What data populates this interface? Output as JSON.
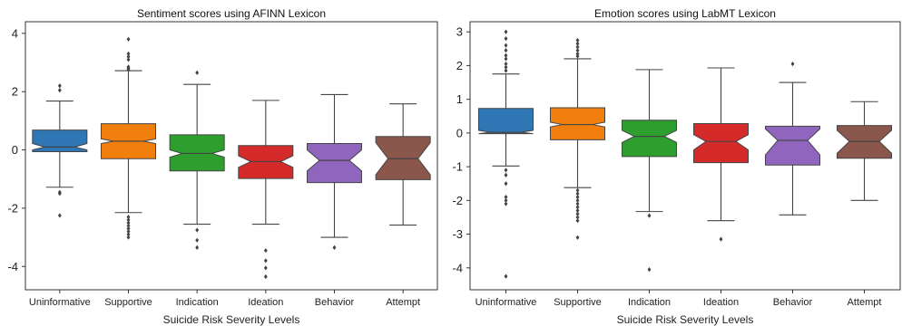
{
  "colors": {
    "Uninformative": "#2f77b4",
    "Supportive": "#f07f0e",
    "Indication": "#2e9e2e",
    "Ideation": "#d42a2a",
    "Behavior": "#9065bd",
    "Attempt": "#8b564b"
  },
  "chart_data": [
    {
      "type": "box",
      "title": "Sentiment scores using AFINN Lexicon",
      "xlabel": "Suicide Risk Severity Levels",
      "ylabel": "",
      "ylim": [
        -4.8,
        4.4
      ],
      "yticks": [
        -4,
        -2,
        0,
        2,
        4
      ],
      "ytick_labels": [
        "-4",
        "-2",
        "0",
        "2",
        "4"
      ],
      "categories": [
        "Uninformative",
        "Supportive",
        "Indication",
        "Ideation",
        "Behavior",
        "Attempt"
      ],
      "boxes": [
        {
          "category": "Uninformative",
          "q1": -0.06,
          "median": 0.1,
          "q3": 0.68,
          "whisker_low": -1.28,
          "whisker_high": 1.68,
          "notch_low": 0.0,
          "notch_high": 0.22,
          "fliers": [
            2.2,
            2.05,
            -1.45,
            -1.5,
            -2.25
          ]
        },
        {
          "category": "Supportive",
          "q1": -0.3,
          "median": 0.3,
          "q3": 0.9,
          "whisker_low": -2.15,
          "whisker_high": 2.72,
          "notch_low": 0.22,
          "notch_high": 0.38,
          "fliers": [
            3.8,
            3.3,
            3.2,
            3.1,
            2.85,
            2.8,
            2.75,
            -2.3,
            -2.4,
            -2.5,
            -2.6,
            -2.7,
            -2.8,
            -2.9,
            -3.0
          ]
        },
        {
          "category": "Indication",
          "q1": -0.72,
          "median": -0.12,
          "q3": 0.52,
          "whisker_low": -2.55,
          "whisker_high": 2.25,
          "notch_low": -0.25,
          "notch_high": 0.0,
          "fliers": [
            2.65,
            -2.75,
            -3.1,
            -3.35
          ]
        },
        {
          "category": "Ideation",
          "q1": -0.98,
          "median": -0.4,
          "q3": 0.15,
          "whisker_low": -2.55,
          "whisker_high": 1.7,
          "notch_low": -0.6,
          "notch_high": -0.2,
          "fliers": [
            -3.45,
            -3.8,
            -4.05,
            -4.35
          ]
        },
        {
          "category": "Behavior",
          "q1": -1.12,
          "median": -0.36,
          "q3": 0.22,
          "whisker_low": -3.0,
          "whisker_high": 1.9,
          "notch_low": -0.72,
          "notch_high": 0.0,
          "fliers": [
            -3.35
          ]
        },
        {
          "category": "Attempt",
          "q1": -1.02,
          "median": -0.3,
          "q3": 0.46,
          "whisker_low": -2.58,
          "whisker_high": 1.58,
          "notch_low": -0.85,
          "notch_high": 0.25,
          "fliers": []
        }
      ]
    },
    {
      "type": "box",
      "title": "Emotion scores using LabMT Lexicon",
      "xlabel": "Suicide Risk Severity Levels",
      "ylabel": "",
      "ylim": [
        -4.65,
        3.3
      ],
      "yticks": [
        -4,
        -3,
        -2,
        -1,
        0,
        1,
        2,
        3
      ],
      "ytick_labels": [
        "-4",
        "-3",
        "-2",
        "-1",
        "0",
        "1",
        "2",
        "3"
      ],
      "categories": [
        "Uninformative",
        "Supportive",
        "Indication",
        "Ideation",
        "Behavior",
        "Attempt"
      ],
      "boxes": [
        {
          "category": "Uninformative",
          "q1": -0.02,
          "median": 0.02,
          "q3": 0.73,
          "whisker_low": -0.98,
          "whisker_high": 1.75,
          "notch_low": -0.02,
          "notch_high": 0.08,
          "fliers": [
            3.0,
            2.8,
            2.6,
            2.45,
            2.3,
            2.2,
            2.05,
            1.95,
            1.85,
            -1.1,
            -1.25,
            -1.5,
            -1.9,
            -2.0,
            -2.1,
            -4.25
          ]
        },
        {
          "category": "Supportive",
          "q1": -0.2,
          "median": 0.25,
          "q3": 0.75,
          "whisker_low": -1.62,
          "whisker_high": 2.2,
          "notch_low": 0.18,
          "notch_high": 0.32,
          "fliers": [
            2.75,
            2.65,
            2.55,
            2.45,
            2.35,
            2.28,
            -1.7,
            -1.8,
            -1.9,
            -2.0,
            -2.1,
            -2.2,
            -2.3,
            -2.4,
            -2.5,
            -2.6,
            -3.1
          ]
        },
        {
          "category": "Indication",
          "q1": -0.7,
          "median": -0.1,
          "q3": 0.38,
          "whisker_low": -2.33,
          "whisker_high": 1.88,
          "notch_low": -0.28,
          "notch_high": 0.08,
          "fliers": [
            -2.45,
            -4.05
          ]
        },
        {
          "category": "Ideation",
          "q1": -0.88,
          "median": -0.25,
          "q3": 0.28,
          "whisker_low": -2.6,
          "whisker_high": 1.93,
          "notch_low": -0.5,
          "notch_high": -0.05,
          "fliers": [
            -3.15
          ]
        },
        {
          "category": "Behavior",
          "q1": -0.95,
          "median": -0.22,
          "q3": 0.2,
          "whisker_low": -2.43,
          "whisker_high": 1.5,
          "notch_low": -0.65,
          "notch_high": 0.12,
          "fliers": [
            2.05
          ]
        },
        {
          "category": "Attempt",
          "q1": -0.75,
          "median": -0.25,
          "q3": 0.22,
          "whisker_low": -2.0,
          "whisker_high": 0.93,
          "notch_low": -0.6,
          "notch_high": 0.08,
          "fliers": []
        }
      ]
    }
  ]
}
